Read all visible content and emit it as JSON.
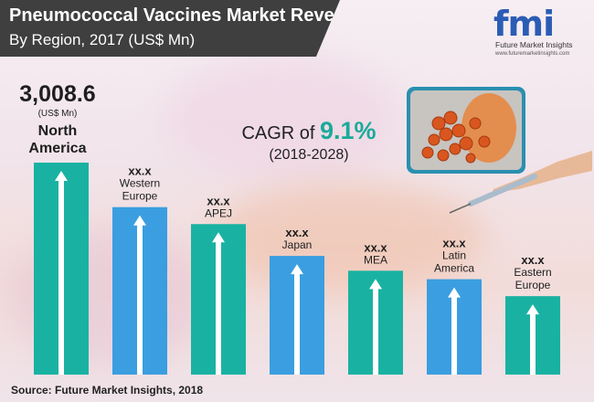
{
  "title": "Pneumococcal Vaccines Market Revenue",
  "subtitle": "By Region, 2017 (US$ Mn)",
  "logo": {
    "letters": "fmi",
    "name": "Future Market Insights",
    "url": "www.futuremarketinsights.com"
  },
  "cagr": {
    "prefix": "CAGR of ",
    "value": "9.1%",
    "period": "(2018-2028)"
  },
  "source": "Source: Future Market Insights, 2018",
  "colors": {
    "teal": "#19b2a2",
    "blue": "#3a9ee0",
    "title_bg": "#3f3f3f",
    "accent": "#1aaa9a"
  },
  "chart_data": {
    "type": "bar",
    "categories": [
      "North America",
      "Western Europe",
      "APEJ",
      "Japan",
      "MEA",
      "Latin America",
      "Eastern Europe"
    ],
    "value_labels": [
      "3,008.6",
      "xx.x",
      "xx.x",
      "xx.x",
      "xx.x",
      "xx.x",
      "xx.x"
    ],
    "unit_label": "(US$ Mn)",
    "relative_heights": [
      1.0,
      0.79,
      0.71,
      0.56,
      0.49,
      0.45,
      0.37
    ],
    "bar_colors": [
      "teal",
      "blue",
      "teal",
      "blue",
      "teal",
      "blue",
      "teal"
    ],
    "title": "Pneumococcal Vaccines Market Revenue"
  }
}
